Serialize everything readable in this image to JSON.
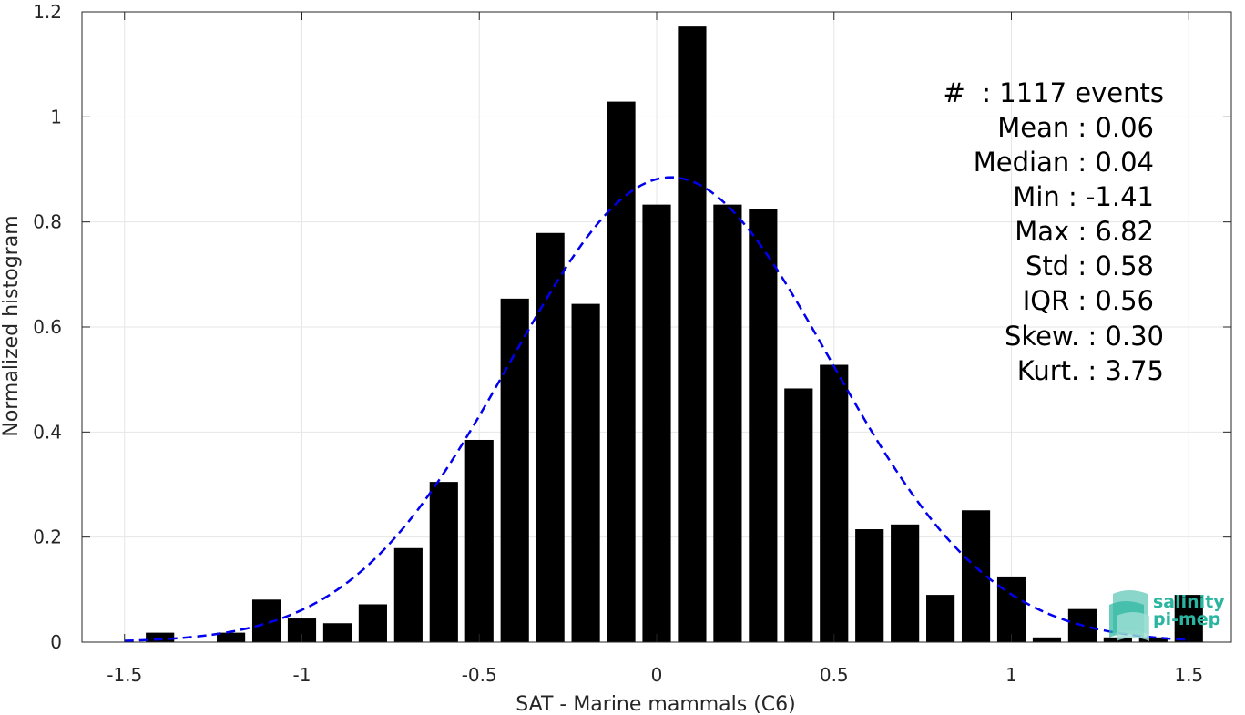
{
  "chart_data": {
    "type": "bar",
    "title": "",
    "xlabel": "SAT - Marine mammals (C6)",
    "ylabel": "Normalized histogram",
    "xlim": [
      -1.62,
      1.62
    ],
    "ylim": [
      0,
      1.2
    ],
    "grid": true,
    "xticks": [
      -1.5,
      -1,
      -0.5,
      0,
      0.5,
      1,
      1.5
    ],
    "xtick_labels": [
      "-1.5",
      "-1",
      "-0.5",
      "0",
      "0.5",
      "1",
      "1.5"
    ],
    "yticks": [
      0,
      0.2,
      0.4,
      0.6,
      0.8,
      1,
      1.2
    ],
    "ytick_labels": [
      "0",
      "0.2",
      "0.4",
      "0.6",
      "0.8",
      "1",
      "1.2"
    ],
    "bin_width": 0.1,
    "bar_color": "#000000",
    "bin_centers": [
      -1.4,
      -1.2,
      -1.1,
      -1.0,
      -0.9,
      -0.8,
      -0.7,
      -0.6,
      -0.5,
      -0.4,
      -0.3,
      -0.2,
      -0.1,
      0.0,
      0.1,
      0.2,
      0.3,
      0.4,
      0.5,
      0.6,
      0.7,
      0.8,
      0.9,
      1.0,
      1.1,
      1.2,
      1.3,
      1.4,
      1.5
    ],
    "values": [
      0.018,
      0.018,
      0.081,
      0.045,
      0.036,
      0.072,
      0.179,
      0.305,
      0.385,
      0.654,
      0.779,
      0.644,
      1.029,
      0.833,
      1.172,
      0.833,
      0.824,
      0.483,
      0.528,
      0.215,
      0.224,
      0.09,
      0.251,
      0.125,
      0.009,
      0.063,
      0.009,
      0.009,
      0.09
    ],
    "fit_curve": {
      "style": "dashed",
      "color": "#0000ee",
      "mean": 0.04,
      "std": 0.45,
      "peak": 0.885,
      "x_range": [
        -1.5,
        1.5
      ]
    }
  },
  "stats": {
    "lines": [
      "#  : 1117 events",
      "Mean : 0.06",
      "Median : 0.04",
      "Min : -1.41",
      "Max : 6.82",
      "Std : 0.58",
      "IQR : 0.56",
      "Skew. : 0.30",
      "Kurt. : 3.75"
    ]
  },
  "logo": {
    "line1": "salinity",
    "line2": "pi-mep",
    "color": "#2bb5a0"
  }
}
